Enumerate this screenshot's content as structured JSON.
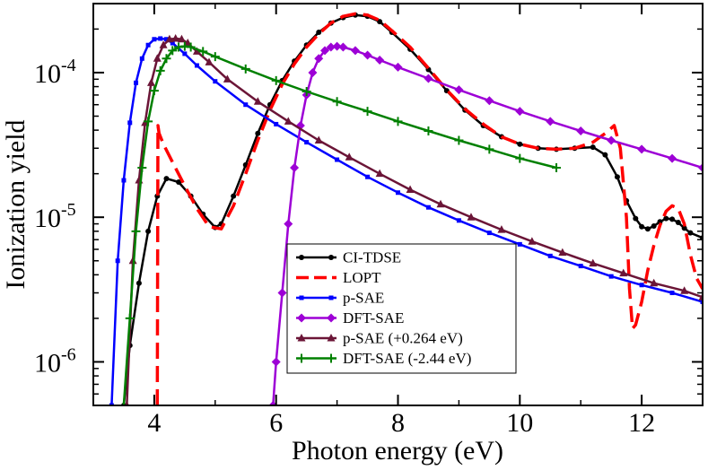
{
  "chart_data": {
    "type": "line",
    "title": "",
    "xlabel": "Photon energy (eV)",
    "ylabel": "Ionization yield",
    "xlim": [
      3,
      13
    ],
    "ylim": [
      5e-07,
      0.0003
    ],
    "yscale": "log",
    "x_ticks": [
      4,
      6,
      8,
      10,
      12
    ],
    "x_tick_labels": [
      "4",
      "6",
      "8",
      "10",
      "12"
    ],
    "y_ticks": [
      {
        "value": 1e-06,
        "base": "10",
        "exp": "-6"
      },
      {
        "value": 1e-05,
        "base": "10",
        "exp": "-5"
      },
      {
        "value": 0.0001,
        "base": "10",
        "exp": "-4"
      }
    ],
    "grid": false,
    "legend_position": "bottom-center",
    "series": [
      {
        "name": "CI-TDSE",
        "color": "#000000",
        "marker": "circle",
        "dash": "solid",
        "x": [
          3.5,
          3.6,
          3.75,
          3.9,
          4.05,
          4.2,
          4.4,
          4.6,
          4.8,
          5.0,
          5.1,
          5.3,
          5.5,
          5.7,
          5.9,
          6.1,
          6.3,
          6.5,
          6.7,
          6.9,
          7.1,
          7.3,
          7.5,
          7.7,
          7.9,
          8.2,
          8.5,
          8.8,
          9.1,
          9.4,
          9.7,
          10.0,
          10.3,
          10.6,
          10.9,
          11.2,
          11.4,
          11.6,
          11.75,
          11.9,
          12.0,
          12.1,
          12.2,
          12.3,
          12.4,
          12.5,
          12.6,
          12.7,
          12.8,
          13.0
        ],
        "y": [
          5e-07,
          1.3e-06,
          3.5e-06,
          8e-06,
          1.4e-05,
          1.85e-05,
          1.75e-05,
          1.4e-05,
          1.05e-05,
          8.5e-06,
          9e-06,
          1.4e-05,
          2.3e-05,
          3.8e-05,
          6e-05,
          8.8e-05,
          0.00012,
          0.000155,
          0.00019,
          0.00022,
          0.00024,
          0.00025,
          0.000245,
          0.000225,
          0.00019,
          0.000145,
          0.000105,
          7.5e-05,
          5.5e-05,
          4.3e-05,
          3.6e-05,
          3.2e-05,
          3e-05,
          2.95e-05,
          3e-05,
          3.05e-05,
          2.7e-05,
          1.9e-05,
          1.3e-05,
          9.8e-06,
          8.6e-06,
          8.3e-06,
          8.7e-06,
          9.3e-06,
          9.8e-06,
          9.7e-06,
          9.2e-06,
          8.4e-06,
          7.8e-06,
          7.2e-06
        ]
      },
      {
        "name": "LOPT",
        "color": "#ff0000",
        "marker": "none",
        "dash": "dashed",
        "x": [
          4.05,
          4.06,
          4.08,
          4.15,
          4.3,
          4.5,
          4.7,
          4.9,
          5.1,
          5.3,
          5.5,
          5.7,
          5.9,
          6.1,
          6.3,
          6.5,
          6.7,
          6.9,
          7.1,
          7.3,
          7.5,
          7.7,
          7.9,
          8.2,
          8.5,
          8.8,
          9.1,
          9.4,
          9.7,
          10.0,
          10.3,
          10.6,
          10.9,
          11.2,
          11.4,
          11.55,
          11.65,
          11.75,
          11.8,
          11.85,
          11.9,
          12.0,
          12.1,
          12.2,
          12.3,
          12.4,
          12.5,
          12.6,
          12.7,
          12.8,
          12.9,
          13.0
        ],
        "y": [
          5e-07,
          4.3e-05,
          3.8e-05,
          3.2e-05,
          2.4e-05,
          1.65e-05,
          1.15e-05,
          8.6e-06,
          8.3e-06,
          1.2e-05,
          2e-05,
          3.4e-05,
          5.5e-05,
          8.3e-05,
          0.000115,
          0.00015,
          0.000185,
          0.00022,
          0.000245,
          0.000255,
          0.00025,
          0.00023,
          0.000195,
          0.00015,
          0.000107,
          7.6e-05,
          5.6e-05,
          4.4e-05,
          3.6e-05,
          3.2e-05,
          3e-05,
          2.95e-05,
          3e-05,
          3.3e-05,
          3.8e-05,
          4.3e-05,
          3e-05,
          1e-05,
          3.2e-06,
          1.7e-06,
          1.8e-06,
          2.6e-06,
          4.3e-06,
          6.4e-06,
          8.8e-06,
          1.1e-05,
          1.2e-05,
          1.15e-05,
          9e-06,
          5.5e-06,
          3.8e-06,
          3.2e-06
        ]
      },
      {
        "name": "p-SAE",
        "color": "#0000ff",
        "marker": "square",
        "dash": "solid",
        "x": [
          3.3,
          3.4,
          3.5,
          3.6,
          3.7,
          3.8,
          3.9,
          4.0,
          4.1,
          4.2,
          4.3,
          4.5,
          4.7,
          5.0,
          5.5,
          6.0,
          6.5,
          7.0,
          7.5,
          8.0,
          8.5,
          9.0,
          9.5,
          10.0,
          10.5,
          11.0,
          11.5,
          12.0,
          12.5,
          13.0
        ],
        "y": [
          5e-07,
          5e-06,
          1.8e-05,
          4.5e-05,
          8.5e-05,
          0.000125,
          0.000155,
          0.00017,
          0.000172,
          0.00017,
          0.00016,
          0.000135,
          0.000112,
          8.7e-05,
          6e-05,
          4.4e-05,
          3.3e-05,
          2.5e-05,
          1.9e-05,
          1.48e-05,
          1.17e-05,
          9.5e-06,
          7.8e-06,
          6.5e-06,
          5.4e-06,
          4.6e-06,
          3.9e-06,
          3.4e-06,
          3e-06,
          2.6e-06
        ]
      },
      {
        "name": "DFT-SAE",
        "color": "#9d00d6",
        "marker": "diamond",
        "dash": "solid",
        "x": [
          5.95,
          6.0,
          6.1,
          6.2,
          6.3,
          6.4,
          6.5,
          6.6,
          6.7,
          6.8,
          6.9,
          7.0,
          7.1,
          7.3,
          7.5,
          7.7,
          8.0,
          8.5,
          9.0,
          9.5,
          10.0,
          10.5,
          11.0,
          11.5,
          12.0,
          12.5,
          13.0
        ],
        "y": [
          5e-07,
          1e-06,
          3e-06,
          9e-06,
          2.2e-05,
          4.3e-05,
          7e-05,
          0.0001,
          0.000125,
          0.000142,
          0.00015,
          0.000152,
          0.00015,
          0.000142,
          0.000132,
          0.000122,
          0.000109,
          9.1e-05,
          7.6e-05,
          6.4e-05,
          5.4e-05,
          4.6e-05,
          3.95e-05,
          3.4e-05,
          2.95e-05,
          2.55e-05,
          2.2e-05
        ]
      },
      {
        "name": "p-SAE (+0.264 eV)",
        "color": "#6b1537",
        "marker": "triangle",
        "dash": "solid",
        "x": [
          3.55,
          3.65,
          3.75,
          3.85,
          3.95,
          4.05,
          4.15,
          4.25,
          4.35,
          4.45,
          4.55,
          4.7,
          4.9,
          5.2,
          5.7,
          6.2,
          6.7,
          7.2,
          7.7,
          8.2,
          8.7,
          9.2,
          9.7,
          10.2,
          10.7,
          11.2,
          11.7,
          12.2,
          12.7,
          13.0
        ],
        "y": [
          5e-07,
          5e-06,
          1.8e-05,
          4.5e-05,
          8.5e-05,
          0.000125,
          0.000155,
          0.00017,
          0.000172,
          0.00017,
          0.00016,
          0.00014,
          0.000118,
          9e-05,
          6.3e-05,
          4.6e-05,
          3.4e-05,
          2.6e-05,
          2e-05,
          1.55e-05,
          1.23e-05,
          1e-05,
          8.2e-06,
          6.8e-06,
          5.7e-06,
          4.8e-06,
          4.1e-06,
          3.5e-06,
          3.1e-06,
          2.8e-06
        ]
      },
      {
        "name": "DFT-SAE (-2.44 eV)",
        "color": "#008000",
        "marker": "plus",
        "dash": "solid",
        "x": [
          3.5,
          3.6,
          3.7,
          3.8,
          3.9,
          4.0,
          4.1,
          4.2,
          4.3,
          4.4,
          4.5,
          4.6,
          4.8,
          5.0,
          5.5,
          6.0,
          6.5,
          7.0,
          7.5,
          8.0,
          8.5,
          9.0,
          9.5,
          10.0,
          10.6
        ],
        "y": [
          5e-07,
          2e-06,
          8e-06,
          2.2e-05,
          4.6e-05,
          7.5e-05,
          0.000103,
          0.000125,
          0.000142,
          0.00015,
          0.000152,
          0.00015,
          0.00014,
          0.000129,
          0.000106,
          8.8e-05,
          7.4e-05,
          6.3e-05,
          5.4e-05,
          4.6e-05,
          3.95e-05,
          3.4e-05,
          2.95e-05,
          2.55e-05,
          2.2e-05
        ]
      }
    ]
  }
}
